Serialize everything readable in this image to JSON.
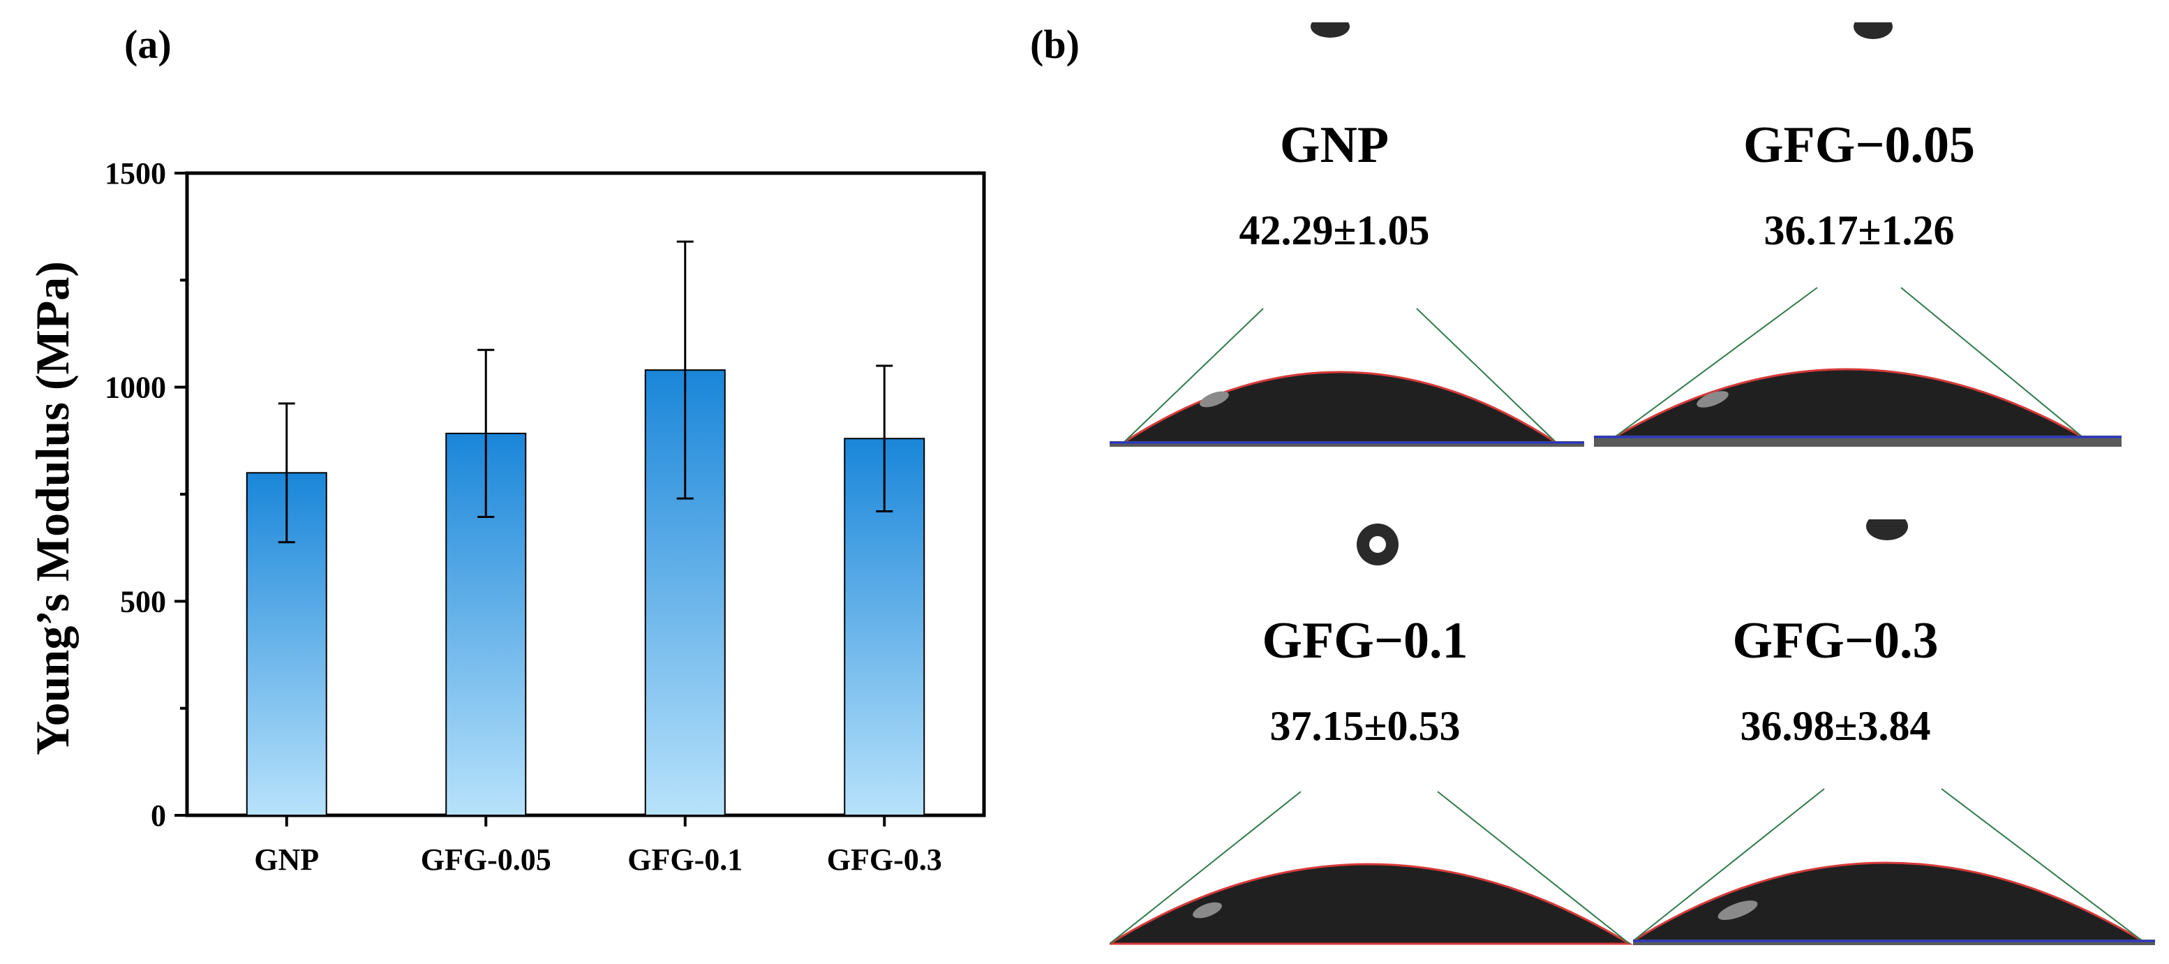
{
  "panel_a_label": "(a)",
  "panel_b_label": "(b)",
  "chart_data": {
    "type": "bar",
    "title": "",
    "xlabel": "",
    "ylabel": "Young’s Modulus (MPa)",
    "categories": [
      "GNP",
      "GFG-0.05",
      "GFG-0.1",
      "GFG-0.3"
    ],
    "values": [
      800,
      892,
      1040,
      880
    ],
    "errors": [
      162,
      195,
      300,
      170
    ],
    "ylim": [
      0,
      1500
    ],
    "yticks": [
      0,
      500,
      1000,
      1500
    ],
    "bar_gradient": {
      "top": "#1a86d9",
      "bottom": "#b8e2fb"
    }
  },
  "contact_angle_images": [
    {
      "name": "GNP",
      "angle": "42.29±1.05"
    },
    {
      "name": "GFG−0.05",
      "angle": "36.17±1.26"
    },
    {
      "name": "GFG−0.1",
      "angle": "37.15±0.53"
    },
    {
      "name": "GFG−0.3",
      "angle": "36.98±3.84"
    }
  ]
}
